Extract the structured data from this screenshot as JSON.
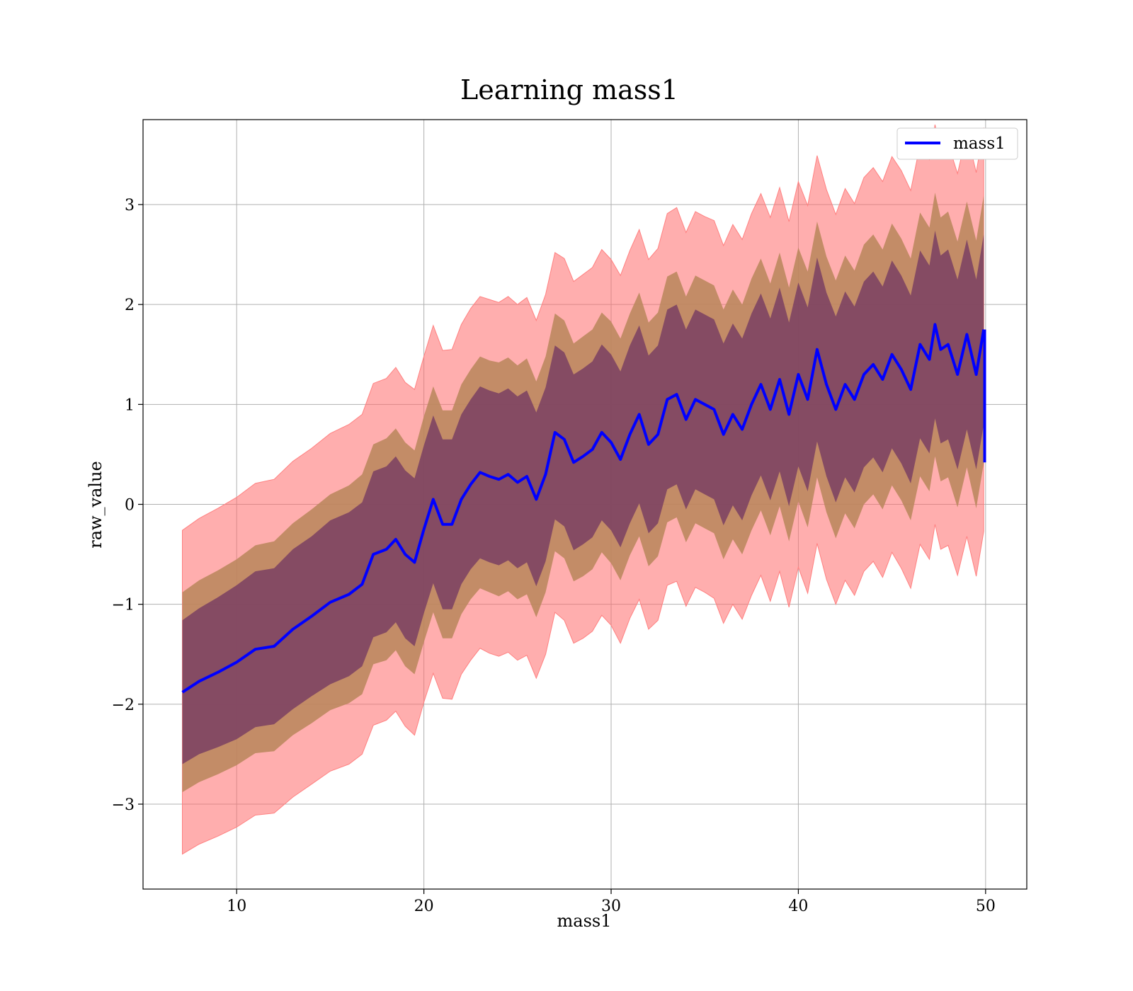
{
  "chart_data": {
    "type": "line",
    "title": "Learning mass1",
    "xlabel": "mass1",
    "ylabel": "raw_value",
    "xlim": [
      5,
      52.2
    ],
    "ylim": [
      -3.85,
      3.85
    ],
    "x_ticks": [
      10,
      20,
      30,
      40,
      50
    ],
    "y_ticks": [
      -3,
      -2,
      -1,
      0,
      1,
      2,
      3
    ],
    "x_tick_labels": [
      "10",
      "20",
      "30",
      "40",
      "50"
    ],
    "y_tick_labels": [
      "−3",
      "−2",
      "−1",
      "0",
      "1",
      "2",
      "3"
    ],
    "grid": true,
    "legend": {
      "placement": "top-right",
      "entries": [
        "mass1"
      ]
    },
    "series": [
      {
        "name": "mass1",
        "color": "#0000ff",
        "x": [
          7.1,
          8.0,
          9.0,
          10.0,
          11.0,
          12.0,
          13.0,
          14.0,
          15.0,
          16.0,
          16.7,
          17.3,
          18.0,
          18.5,
          19.0,
          19.5,
          20.0,
          20.5,
          21.0,
          21.5,
          22.0,
          22.5,
          23.0,
          23.5,
          24.0,
          24.5,
          25.0,
          25.5,
          26.0,
          26.5,
          27.0,
          27.5,
          28.0,
          28.5,
          29.0,
          29.5,
          30.0,
          30.5,
          31.0,
          31.5,
          32.0,
          32.5,
          33.0,
          33.5,
          34.0,
          34.5,
          35.0,
          35.5,
          36.0,
          36.5,
          37.0,
          37.5,
          38.0,
          38.5,
          39.0,
          39.5,
          40.0,
          40.5,
          41.0,
          41.5,
          42.0,
          42.5,
          43.0,
          43.5,
          44.0,
          44.5,
          45.0,
          45.5,
          46.0,
          46.5,
          47.0,
          47.3,
          47.6,
          48.0,
          48.5,
          49.0,
          49.5,
          49.9
        ],
        "mean": [
          -1.88,
          -1.77,
          -1.68,
          -1.58,
          -1.45,
          -1.42,
          -1.25,
          -1.12,
          -0.98,
          -0.9,
          -0.8,
          -0.5,
          -0.45,
          -0.35,
          -0.5,
          -0.58,
          -0.25,
          0.05,
          -0.2,
          -0.2,
          0.05,
          0.2,
          0.32,
          0.28,
          0.25,
          0.3,
          0.22,
          0.28,
          0.05,
          0.3,
          0.72,
          0.65,
          0.42,
          0.48,
          0.55,
          0.72,
          0.62,
          0.45,
          0.7,
          0.9,
          0.6,
          0.7,
          1.05,
          1.1,
          0.85,
          1.05,
          1.0,
          0.95,
          0.7,
          0.9,
          0.75,
          1.0,
          1.2,
          0.95,
          1.25,
          0.9,
          1.3,
          1.05,
          1.55,
          1.2,
          0.95,
          1.2,
          1.05,
          1.3,
          1.4,
          1.25,
          1.5,
          1.35,
          1.15,
          1.6,
          1.45,
          1.8,
          1.55,
          1.6,
          1.3,
          1.7,
          1.3,
          1.75
        ],
        "inner_half_width": [
          0.72,
          0.73,
          0.75,
          0.77,
          0.78,
          0.78,
          0.8,
          0.8,
          0.82,
          0.82,
          0.82,
          0.83,
          0.83,
          0.83,
          0.84,
          0.84,
          0.84,
          0.84,
          0.85,
          0.85,
          0.85,
          0.85,
          0.86,
          0.86,
          0.86,
          0.86,
          0.86,
          0.86,
          0.87,
          0.87,
          0.87,
          0.87,
          0.88,
          0.88,
          0.88,
          0.88,
          0.88,
          0.88,
          0.89,
          0.89,
          0.89,
          0.89,
          0.9,
          0.9,
          0.9,
          0.9,
          0.9,
          0.9,
          0.91,
          0.91,
          0.91,
          0.91,
          0.91,
          0.91,
          0.92,
          0.92,
          0.92,
          0.92,
          0.92,
          0.92,
          0.93,
          0.93,
          0.93,
          0.93,
          0.93,
          0.93,
          0.94,
          0.94,
          0.94,
          0.94,
          0.94,
          0.94,
          0.94,
          0.95,
          0.95,
          0.95,
          0.95,
          0.95
        ],
        "middle_half_width": [
          1.0,
          1.01,
          1.02,
          1.03,
          1.04,
          1.05,
          1.06,
          1.07,
          1.08,
          1.09,
          1.1,
          1.1,
          1.11,
          1.11,
          1.12,
          1.12,
          1.13,
          1.13,
          1.14,
          1.14,
          1.15,
          1.15,
          1.16,
          1.16,
          1.17,
          1.17,
          1.17,
          1.18,
          1.18,
          1.18,
          1.19,
          1.19,
          1.19,
          1.2,
          1.2,
          1.2,
          1.21,
          1.21,
          1.21,
          1.22,
          1.22,
          1.22,
          1.23,
          1.23,
          1.23,
          1.24,
          1.24,
          1.24,
          1.25,
          1.25,
          1.25,
          1.26,
          1.26,
          1.26,
          1.27,
          1.27,
          1.27,
          1.28,
          1.28,
          1.28,
          1.29,
          1.29,
          1.29,
          1.3,
          1.3,
          1.3,
          1.31,
          1.31,
          1.31,
          1.32,
          1.32,
          1.32,
          1.32,
          1.33,
          1.33,
          1.33,
          1.34,
          1.34
        ],
        "outer_half_width": [
          1.62,
          1.63,
          1.64,
          1.65,
          1.66,
          1.67,
          1.68,
          1.68,
          1.69,
          1.7,
          1.7,
          1.71,
          1.71,
          1.72,
          1.72,
          1.73,
          1.73,
          1.74,
          1.74,
          1.75,
          1.75,
          1.76,
          1.76,
          1.77,
          1.77,
          1.78,
          1.78,
          1.79,
          1.79,
          1.8,
          1.8,
          1.81,
          1.81,
          1.82,
          1.82,
          1.83,
          1.83,
          1.84,
          1.84,
          1.85,
          1.85,
          1.86,
          1.86,
          1.87,
          1.87,
          1.88,
          1.88,
          1.89,
          1.89,
          1.9,
          1.9,
          1.91,
          1.91,
          1.92,
          1.92,
          1.93,
          1.93,
          1.94,
          1.94,
          1.95,
          1.95,
          1.96,
          1.96,
          1.97,
          1.97,
          1.98,
          1.98,
          1.99,
          1.99,
          2.0,
          2.0,
          2.0,
          2.0,
          2.01,
          2.01,
          2.02,
          2.02,
          2.02
        ],
        "final_segment": {
          "x": 49.95,
          "y_from": 1.75,
          "y_to": 0.42
        }
      }
    ],
    "band_colors": {
      "outer": "#ff6b6b",
      "middle": "#b8865a",
      "inner": "#7a3f63"
    }
  }
}
